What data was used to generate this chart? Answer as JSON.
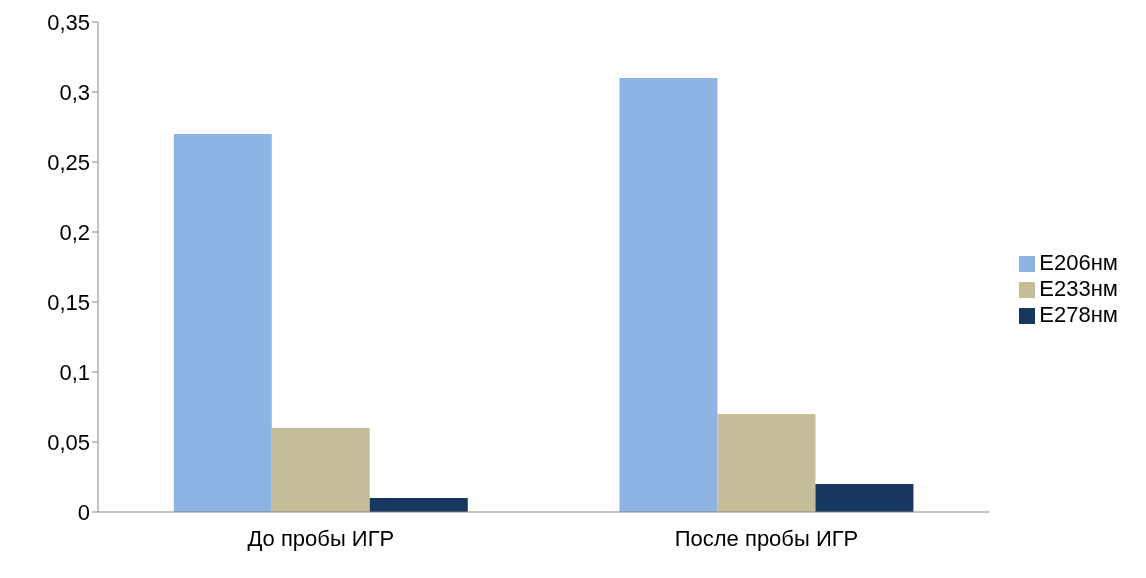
{
  "chart_data": {
    "type": "bar",
    "categories": [
      "До пробы ИГР",
      "После пробы ИГР"
    ],
    "series": [
      {
        "name": "E206нм",
        "color": "#8eb4e3",
        "values": [
          0.27,
          0.31
        ]
      },
      {
        "name": "E233нм",
        "color": "#c4bd97",
        "values": [
          0.06,
          0.07
        ]
      },
      {
        "name": "E278нм",
        "color": "#17375e",
        "values": [
          0.01,
          0.02
        ]
      }
    ],
    "ylim": [
      0,
      0.35
    ],
    "yticks": [
      0,
      {
        "value": 0.05,
        "label": "0,05"
      },
      {
        "value": 0.1,
        "label": "0,1"
      },
      {
        "value": 0.15,
        "label": "0,15"
      },
      {
        "value": 0.2,
        "label": "0,2"
      },
      {
        "value": 0.25,
        "label": "0,25"
      },
      {
        "value": 0.3,
        "label": "0,3"
      },
      {
        "value": 0.35,
        "label": "0,35"
      }
    ],
    "grid": false,
    "legend": "right"
  }
}
